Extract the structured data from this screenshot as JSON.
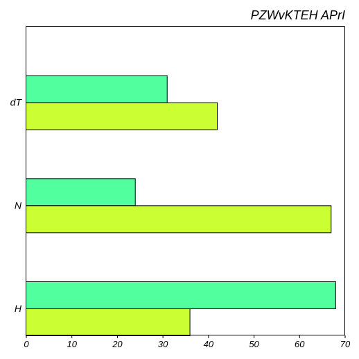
{
  "chart_data": {
    "type": "bar",
    "orientation": "horizontal",
    "title": "PZWvKTEH APrI",
    "categories": [
      "dT",
      "N",
      "H"
    ],
    "series": [
      {
        "color": "#52ff9f",
        "values": [
          31,
          24,
          68
        ]
      },
      {
        "color": "#ccff33",
        "values": [
          42,
          67,
          36
        ]
      }
    ],
    "xlim": [
      0,
      70
    ],
    "xticks": [
      0,
      10,
      20,
      30,
      40,
      50,
      60,
      70
    ],
    "xlabel": "",
    "ylabel": "",
    "grid": false,
    "legend": "none"
  }
}
